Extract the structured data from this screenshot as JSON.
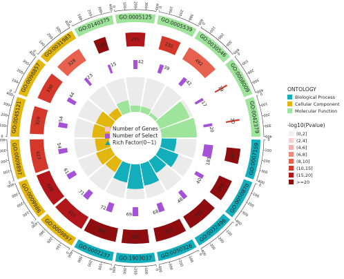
{
  "chart_data": {
    "type": "circular-enrichment",
    "ticks": [
      "0",
      "100",
      "200",
      "300",
      "400"
    ],
    "scale_max": 400,
    "center_legend": [
      {
        "label": "Number of Genes",
        "color": "#f7c6d2",
        "shape": "square"
      },
      {
        "label": "Number of Select",
        "color": "#a453d6",
        "shape": "square"
      },
      {
        "label": "Rich Factor(0~1)",
        "color": "#17a3ad",
        "shape": "triangle"
      }
    ],
    "ontology_legend": {
      "title": "ONTOLOGY",
      "items": [
        {
          "label": "Biological Process",
          "color": "#12aebb"
        },
        {
          "label": "Cellular Component",
          "color": "#e3b60e"
        },
        {
          "label": "Molecular Function",
          "color": "#9ee49a"
        }
      ]
    },
    "pvalue_legend": {
      "title": "-log10(Pvalue)",
      "items": [
        {
          "label": "(0,2]",
          "color": "#f6eded"
        },
        {
          "label": "(2,4]",
          "color": "#f6d2d2"
        },
        {
          "label": "(4,6]",
          "color": "#f3b0ac"
        },
        {
          "label": "(6,8]",
          "color": "#ef8a80"
        },
        {
          "label": "(8,10]",
          "color": "#e8604e"
        },
        {
          "label": "(10,15]",
          "color": "#d4382b"
        },
        {
          "label": "(15,20]",
          "color": "#b1171a"
        },
        {
          "label": ">=20",
          "color": "#8e0e10"
        }
      ]
    },
    "terms": [
      {
        "id": "GO:0005125",
        "ontology": "MF",
        "genes": 235,
        "select": 42,
        "rich": 0.18,
        "pvalue_bin": 6
      },
      {
        "id": "GO:0005539",
        "ontology": "MF",
        "genes": 232,
        "select": 39,
        "rich": 0.17,
        "pvalue_bin": 5
      },
      {
        "id": "GO:0030546",
        "ontology": "MF",
        "genes": 492,
        "select": 42,
        "rich": 0.09,
        "pvalue_bin": 4
      },
      {
        "id": "GO:0008009",
        "ontology": "MF",
        "genes": 19,
        "select": 17,
        "rich": 0.9,
        "pvalue_bin": 5
      },
      {
        "id": "GO:0042379",
        "ontology": "MF",
        "genes": 20,
        "select": 20,
        "rich": 1.0,
        "pvalue_bin": 5
      },
      {
        "id": "GO:0007159",
        "ontology": "BP",
        "genes": 181,
        "select": 181,
        "rich": 0.42,
        "pvalue_bin": 7
      },
      {
        "id": "GO:0050870",
        "ontology": "BP",
        "genes": 258,
        "select": 40,
        "rich": 0.56,
        "pvalue_bin": 7
      },
      {
        "id": "GO:0032496",
        "ontology": "BP",
        "genes": 372,
        "select": 48,
        "rich": 0.41,
        "pvalue_bin": 7
      },
      {
        "id": "GO:0050326",
        "ontology": "BP",
        "genes": 371,
        "select": 68,
        "rich": 0.63,
        "pvalue_bin": 7
      },
      {
        "id": "GO:1903037",
        "ontology": "BP",
        "genes": 325,
        "select": 69,
        "rich": 0.7,
        "pvalue_bin": 7
      },
      {
        "id": "GO:0002237",
        "ontology": "BP",
        "genes": 393,
        "select": 72,
        "rich": 0.54,
        "pvalue_bin": 7
      },
      {
        "id": "GO:0009897",
        "ontology": "CC",
        "genes": 415,
        "select": 71,
        "rich": 0.38,
        "pvalue_bin": 6
      },
      {
        "id": "GO:0009986",
        "ontology": "CC",
        "genes": 420,
        "select": 61,
        "rich": 0.45,
        "pvalue_bin": 6
      },
      {
        "id": "GO:0009897",
        "ontology": "CC",
        "genes": 427,
        "select": 54,
        "rich": 0.4,
        "pvalue_bin": 5
      },
      {
        "id": "GO:0045121",
        "ontology": "CC",
        "genes": 329,
        "select": 54,
        "rich": 0.48,
        "pvalue_bin": 5
      },
      {
        "id": "GO:0098857",
        "ontology": "CC",
        "genes": 330,
        "select": 44,
        "rich": 0.45,
        "pvalue_bin": 5
      },
      {
        "id": "GO:0031983",
        "ontology": "CC",
        "genes": 328,
        "select": 23,
        "rich": 0.25,
        "pvalue_bin": 4
      },
      {
        "id": "GO:0140375",
        "ontology": "MF",
        "genes": 145,
        "select": 15,
        "rich": 0.35,
        "pvalue_bin": 7
      }
    ]
  }
}
